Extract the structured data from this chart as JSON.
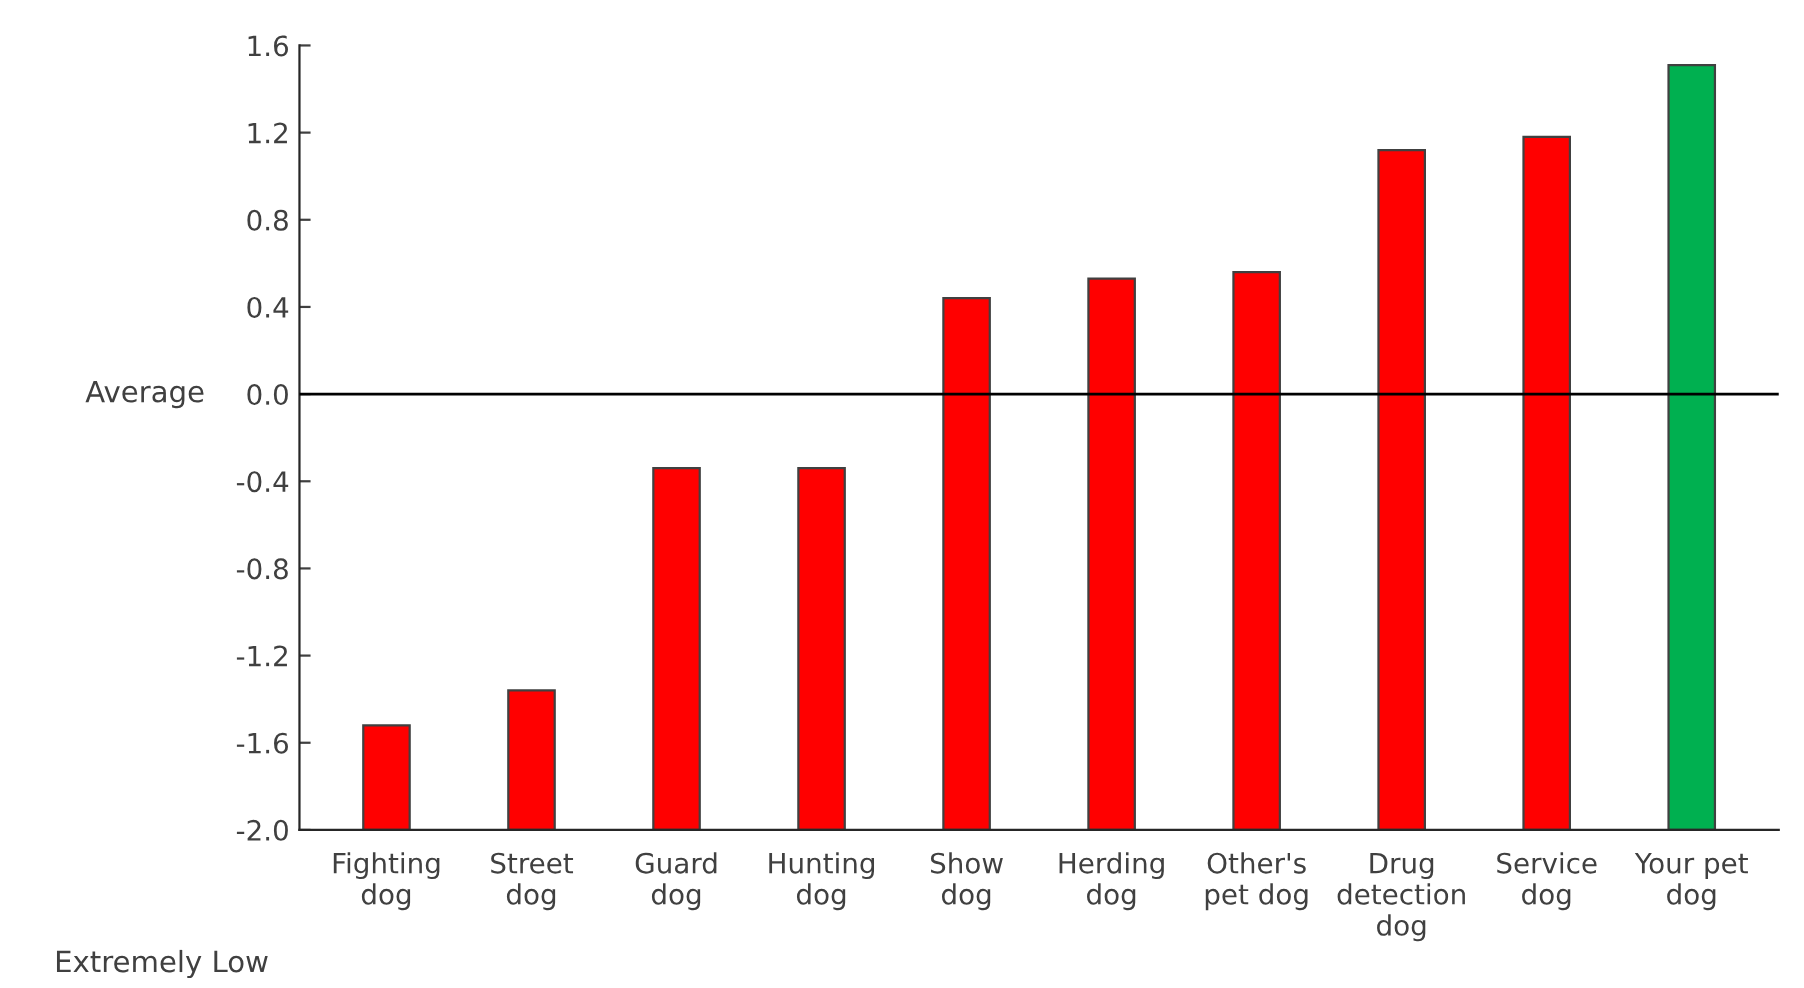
{
  "chart_data": {
    "type": "bar",
    "categories": [
      "Fighting\ndog",
      "Street\ndog",
      "Guard\ndog",
      "Hunting\ndog",
      "Show\ndog",
      "Herding\ndog",
      "Other's\npet dog",
      "Drug\ndetection\ndog",
      "Service\ndog",
      "Your pet\ndog"
    ],
    "values": [
      0.48,
      0.64,
      1.66,
      1.66,
      2.44,
      2.53,
      2.56,
      3.12,
      3.18,
      3.51
    ],
    "base": [
      -2.0,
      -2.0,
      -2.0,
      -2.0,
      -2.0,
      -2.0,
      -2.0,
      -2.0,
      -2.0,
      -2.0
    ],
    "colors": [
      "#ff0000",
      "#ff0000",
      "#ff0000",
      "#ff0000",
      "#ff0000",
      "#ff0000",
      "#ff0000",
      "#ff0000",
      "#ff0000",
      "#00b050"
    ],
    "ylim": [
      -2.0,
      1.6
    ],
    "yticks": [
      {
        "value": -2.0,
        "label": "-2.0"
      },
      {
        "value": -1.6,
        "label": "-1.6"
      },
      {
        "value": -1.2,
        "label": "-1.2"
      },
      {
        "value": -0.8,
        "label": "-0.8"
      },
      {
        "value": -0.4,
        "label": "-0.4"
      },
      {
        "value": 0.0,
        "label": "0.0"
      },
      {
        "value": 0.4,
        "label": "0.4"
      },
      {
        "value": 0.8,
        "label": "0.8"
      },
      {
        "value": 1.2,
        "label": "1.2"
      },
      {
        "value": 1.6,
        "label": "1.6"
      }
    ],
    "ref_lines": [
      {
        "axis": "y",
        "value": 0.0,
        "color": "#000000"
      }
    ],
    "annotations": [
      "Average",
      "Extremely Low"
    ],
    "grid": false,
    "legend": false
  }
}
